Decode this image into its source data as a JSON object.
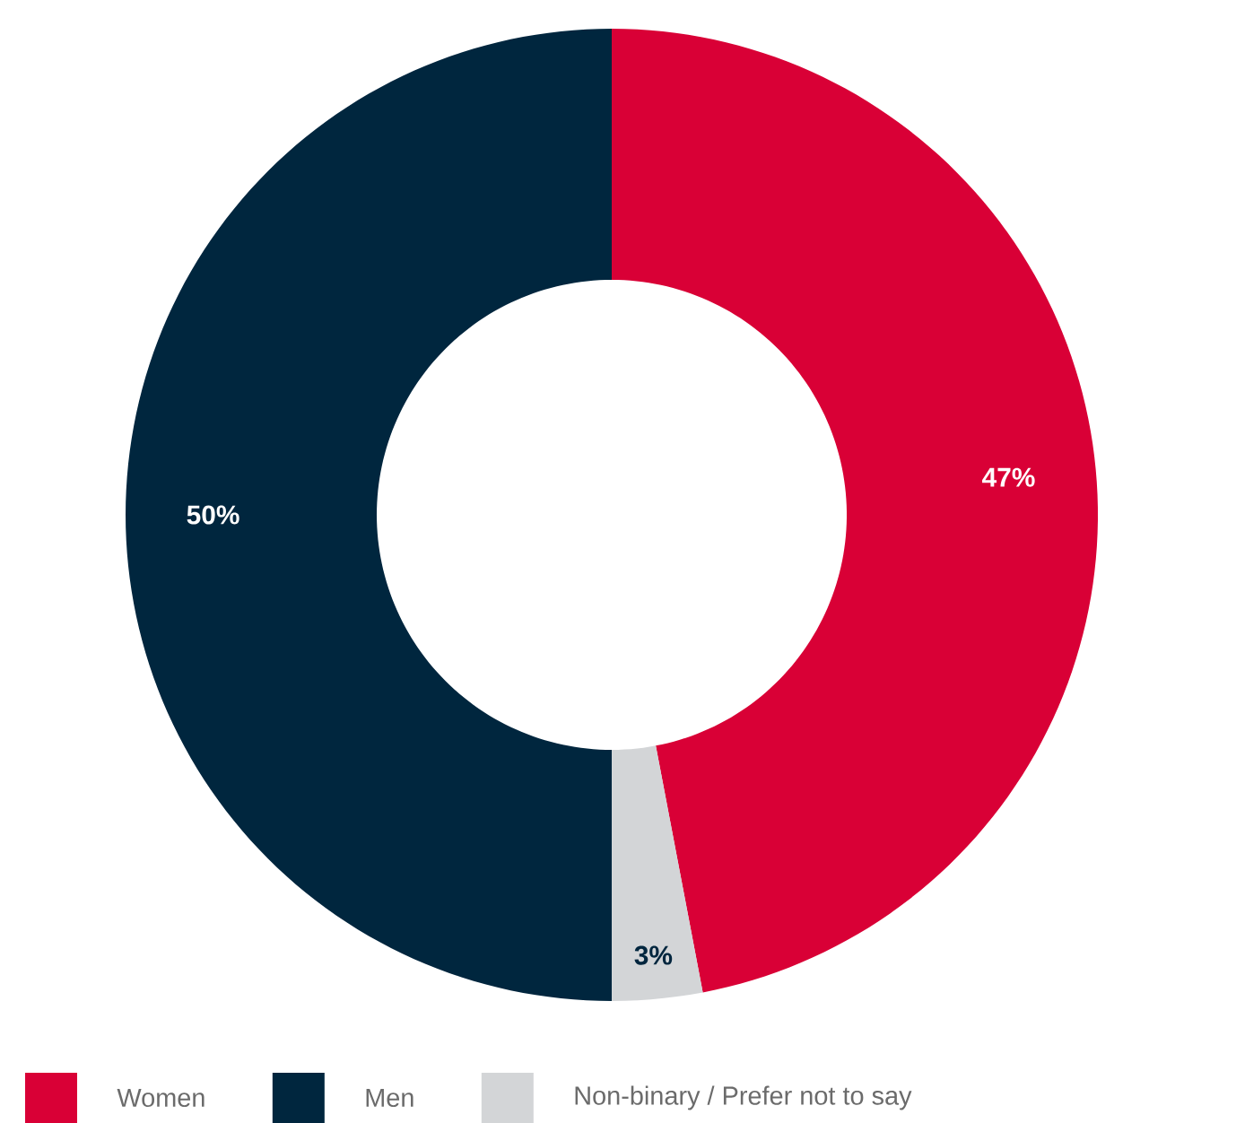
{
  "chart_data": {
    "type": "donut",
    "categories": [
      "Women",
      "Men",
      "Non-binary / Prefer not to say"
    ],
    "values": [
      47,
      50,
      3
    ],
    "colors": [
      "#d90036",
      "#00263e",
      "#d3d5d7"
    ],
    "value_labels": [
      "47%",
      "50%",
      "3%"
    ],
    "legend": "bottom"
  }
}
